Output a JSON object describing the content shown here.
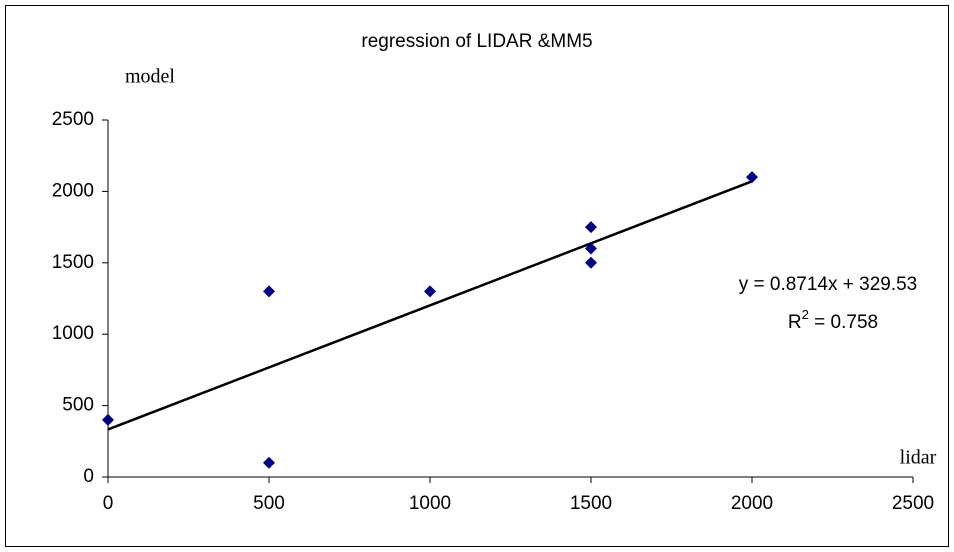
{
  "chart_data": {
    "type": "scatter",
    "title": "regression of LIDAR &MM5",
    "x_label": "lidar",
    "y_label": "model",
    "series": [
      {
        "name": "model",
        "color": "#000080",
        "x": [
          0,
          500,
          500,
          1000,
          1500,
          1500,
          1500,
          2000
        ],
        "values": [
          400,
          1300,
          100,
          1300,
          1750,
          1600,
          1500,
          2100
        ]
      }
    ],
    "xlim": [
      0,
      2500
    ],
    "xticks": [
      0,
      500,
      1000,
      1500,
      2000,
      2500
    ],
    "ylim": [
      0,
      2500
    ],
    "yticks": [
      0,
      500,
      1000,
      1500,
      2000,
      2500
    ],
    "trendline": {
      "equation": "y = 0.8714x + 329.53",
      "r2_base": "R",
      "r2_sup": "2",
      "r2_rest": " = 0.758",
      "color": "#000000"
    }
  }
}
